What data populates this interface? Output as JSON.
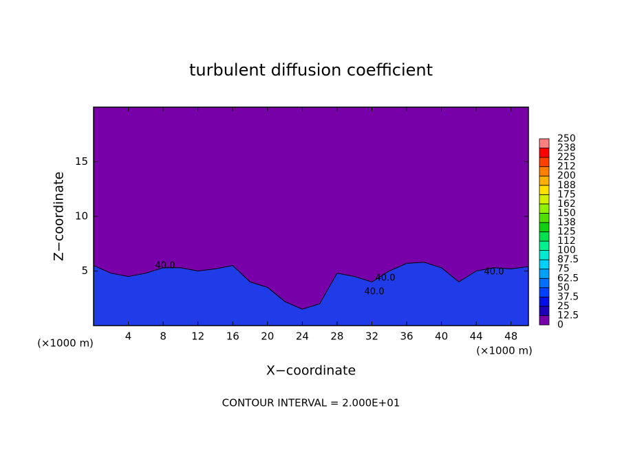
{
  "chart_data": {
    "type": "contour",
    "title": "turbulent diffusion coefficient",
    "x_label": "X−coordinate",
    "y_label": "Z−coordinate",
    "x_unit": "(×1000 m)",
    "footer": "CONTOUR INTERVAL = 2.000E+01",
    "xlim": [
      0,
      50
    ],
    "xticks": [
      4,
      8,
      12,
      16,
      20,
      24,
      28,
      32,
      36,
      40,
      44,
      48
    ],
    "ylim": [
      0,
      20
    ],
    "yticks": [
      5,
      10,
      15
    ],
    "background_color": "#7800a8",
    "x": [
      0,
      2,
      4,
      6,
      8,
      10,
      12,
      14,
      16,
      18,
      20,
      22,
      24,
      26,
      28,
      30,
      32,
      34,
      36,
      38,
      40,
      42,
      44,
      46,
      48,
      50
    ],
    "values": [
      5.5,
      4.8,
      4.5,
      4.8,
      5.3,
      5.3,
      5.0,
      5.2,
      5.5,
      4.0,
      3.5,
      2.2,
      1.5,
      2.0,
      4.8,
      4.5,
      4.0,
      5.0,
      5.7,
      5.8,
      5.3,
      4.0,
      5.0,
      5.3,
      5.2,
      5.4
    ],
    "color": "#1f3ce8",
    "annotations": [
      "40.0",
      "40.0",
      "40.0",
      "40.0"
    ],
    "levels": [
      0,
      12.5,
      25,
      37.5,
      50,
      62.5,
      75,
      87.5,
      100,
      {
        "value": 112.5,
        "label": "112"
      },
      125,
      {
        "value": 137.5,
        "label": "138"
      },
      150,
      {
        "value": 162.5,
        "label": "162"
      },
      175,
      {
        "value": 187.5,
        "label": "188"
      },
      200,
      {
        "value": 212.5,
        "label": "212"
      },
      225,
      {
        "value": 237.5,
        "label": "238"
      },
      250
    ],
    "level_colors": [
      "#7800a8",
      "#1c00b8",
      "#0010e0",
      "#0040ff",
      "#0070ff",
      "#00a0ff",
      "#00d0ff",
      "#00e8d0",
      "#00f090",
      "#00e050",
      "#10d010",
      "#50e000",
      "#90f000",
      "#d0f000",
      "#ffe000",
      "#ffb000",
      "#ff8000",
      "#ff4000",
      "#ff0000",
      "#ff8080"
    ]
  }
}
